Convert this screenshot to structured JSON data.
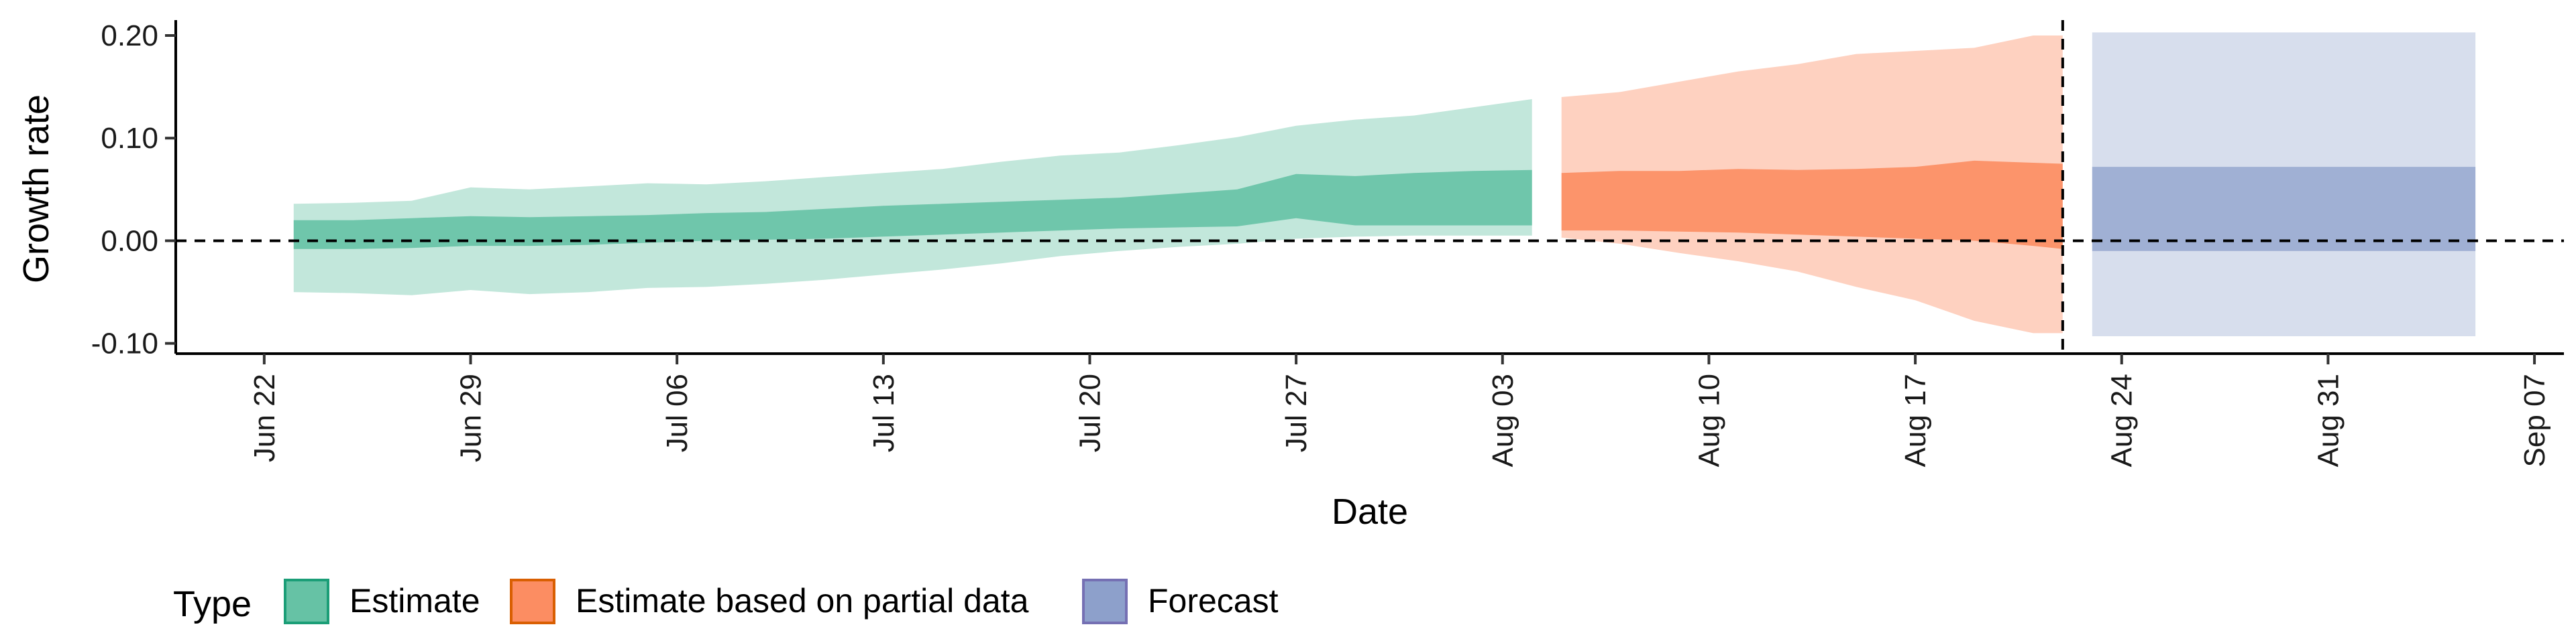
{
  "chart_data": {
    "type": "area",
    "title": "",
    "xlabel": "Date",
    "ylabel": "Growth rate",
    "xlim": [
      "2020-06-19",
      "2020-09-08"
    ],
    "ylim": [
      -0.11,
      0.215
    ],
    "x_ticks": [
      {
        "date": "2020-06-22",
        "label": "Jun 22"
      },
      {
        "date": "2020-06-29",
        "label": "Jun 29"
      },
      {
        "date": "2020-07-06",
        "label": "Jul 06"
      },
      {
        "date": "2020-07-13",
        "label": "Jul 13"
      },
      {
        "date": "2020-07-20",
        "label": "Jul 20"
      },
      {
        "date": "2020-07-27",
        "label": "Jul 27"
      },
      {
        "date": "2020-08-03",
        "label": "Aug 03"
      },
      {
        "date": "2020-08-10",
        "label": "Aug 10"
      },
      {
        "date": "2020-08-17",
        "label": "Aug 17"
      },
      {
        "date": "2020-08-24",
        "label": "Aug 24"
      },
      {
        "date": "2020-08-31",
        "label": "Aug 31"
      },
      {
        "date": "2020-09-07",
        "label": "Sep 07"
      }
    ],
    "y_ticks": [
      {
        "value": -0.1,
        "label": "-0.10"
      },
      {
        "value": 0.0,
        "label": "0.00"
      },
      {
        "value": 0.1,
        "label": "0.10"
      },
      {
        "value": 0.2,
        "label": "0.20"
      }
    ],
    "hline": 0,
    "vline": "2020-08-22",
    "grid": false,
    "legend": {
      "title": "Type",
      "placement": "bottom",
      "entries": [
        {
          "name": "Estimate",
          "fill": "#66c2a5",
          "stroke": "#1b9e77"
        },
        {
          "name": "Estimate based on partial data",
          "fill": "#fc8d62",
          "stroke": "#d95f02"
        },
        {
          "name": "Forecast",
          "fill": "#8da0cb",
          "stroke": "#7570b3"
        }
      ]
    },
    "series": [
      {
        "name": "Estimate",
        "fill": "#66c2a5",
        "outer_opacity": 0.4,
        "inner_opacity": 0.9,
        "points": [
          {
            "x": "2020-06-23",
            "lo90": -0.05,
            "hi90": 0.036,
            "lo50": -0.008,
            "hi50": 0.02
          },
          {
            "x": "2020-06-25",
            "lo90": -0.051,
            "hi90": 0.037,
            "lo50": -0.008,
            "hi50": 0.02
          },
          {
            "x": "2020-06-27",
            "lo90": -0.053,
            "hi90": 0.039,
            "lo50": -0.007,
            "hi50": 0.022
          },
          {
            "x": "2020-06-29",
            "lo90": -0.048,
            "hi90": 0.052,
            "lo50": -0.005,
            "hi50": 0.024
          },
          {
            "x": "2020-07-01",
            "lo90": -0.052,
            "hi90": 0.05,
            "lo50": -0.005,
            "hi50": 0.023
          },
          {
            "x": "2020-07-03",
            "lo90": -0.05,
            "hi90": 0.053,
            "lo50": -0.004,
            "hi50": 0.024
          },
          {
            "x": "2020-07-05",
            "lo90": -0.046,
            "hi90": 0.056,
            "lo50": -0.002,
            "hi50": 0.025
          },
          {
            "x": "2020-07-07",
            "lo90": -0.045,
            "hi90": 0.055,
            "lo50": 0.0,
            "hi50": 0.027
          },
          {
            "x": "2020-07-09",
            "lo90": -0.042,
            "hi90": 0.058,
            "lo50": 0.001,
            "hi50": 0.028
          },
          {
            "x": "2020-07-11",
            "lo90": -0.038,
            "hi90": 0.062,
            "lo50": 0.002,
            "hi50": 0.031
          },
          {
            "x": "2020-07-13",
            "lo90": -0.033,
            "hi90": 0.066,
            "lo50": 0.004,
            "hi50": 0.034
          },
          {
            "x": "2020-07-15",
            "lo90": -0.028,
            "hi90": 0.07,
            "lo50": 0.006,
            "hi50": 0.036
          },
          {
            "x": "2020-07-17",
            "lo90": -0.022,
            "hi90": 0.077,
            "lo50": 0.008,
            "hi50": 0.038
          },
          {
            "x": "2020-07-19",
            "lo90": -0.015,
            "hi90": 0.083,
            "lo50": 0.01,
            "hi50": 0.04
          },
          {
            "x": "2020-07-21",
            "lo90": -0.01,
            "hi90": 0.086,
            "lo50": 0.012,
            "hi50": 0.042
          },
          {
            "x": "2020-07-23",
            "lo90": -0.006,
            "hi90": 0.093,
            "lo50": 0.013,
            "hi50": 0.046
          },
          {
            "x": "2020-07-25",
            "lo90": -0.003,
            "hi90": 0.101,
            "lo50": 0.014,
            "hi50": 0.05
          },
          {
            "x": "2020-07-27",
            "lo90": 0.002,
            "hi90": 0.112,
            "lo50": 0.022,
            "hi50": 0.065
          },
          {
            "x": "2020-07-29",
            "lo90": 0.004,
            "hi90": 0.118,
            "lo50": 0.015,
            "hi50": 0.063
          },
          {
            "x": "2020-07-31",
            "lo90": 0.005,
            "hi90": 0.122,
            "lo50": 0.015,
            "hi50": 0.066
          },
          {
            "x": "2020-08-02",
            "lo90": 0.005,
            "hi90": 0.13,
            "lo50": 0.015,
            "hi50": 0.068
          },
          {
            "x": "2020-08-04",
            "lo90": 0.005,
            "hi90": 0.138,
            "lo50": 0.015,
            "hi50": 0.069
          }
        ]
      },
      {
        "name": "Estimate based on partial data",
        "fill": "#fc8d62",
        "outer_opacity": 0.4,
        "inner_opacity": 0.9,
        "points": [
          {
            "x": "2020-08-05",
            "lo90": 0.003,
            "hi90": 0.14,
            "lo50": 0.01,
            "hi50": 0.066
          },
          {
            "x": "2020-08-07",
            "lo90": -0.003,
            "hi90": 0.145,
            "lo50": 0.01,
            "hi50": 0.068
          },
          {
            "x": "2020-08-09",
            "lo90": -0.012,
            "hi90": 0.155,
            "lo50": 0.009,
            "hi50": 0.068
          },
          {
            "x": "2020-08-11",
            "lo90": -0.02,
            "hi90": 0.165,
            "lo50": 0.008,
            "hi50": 0.07
          },
          {
            "x": "2020-08-13",
            "lo90": -0.03,
            "hi90": 0.172,
            "lo50": 0.006,
            "hi50": 0.069
          },
          {
            "x": "2020-08-15",
            "lo90": -0.045,
            "hi90": 0.182,
            "lo50": 0.004,
            "hi50": 0.07
          },
          {
            "x": "2020-08-17",
            "lo90": -0.058,
            "hi90": 0.185,
            "lo50": 0.002,
            "hi50": 0.072
          },
          {
            "x": "2020-08-19",
            "lo90": -0.078,
            "hi90": 0.188,
            "lo50": 0.0,
            "hi50": 0.078
          },
          {
            "x": "2020-08-21",
            "lo90": -0.09,
            "hi90": 0.2,
            "lo50": -0.005,
            "hi50": 0.076
          },
          {
            "x": "2020-08-22",
            "lo90": -0.09,
            "hi90": 0.2,
            "lo50": -0.008,
            "hi50": 0.075
          }
        ]
      },
      {
        "name": "Forecast",
        "fill": "#8da0cb",
        "outer_opacity": 0.35,
        "inner_opacity": 0.75,
        "points": [
          {
            "x": "2020-08-23",
            "lo90": -0.093,
            "hi90": 0.203,
            "lo50": -0.01,
            "hi50": 0.072
          },
          {
            "x": "2020-09-05",
            "lo90": -0.093,
            "hi90": 0.203,
            "lo50": -0.01,
            "hi50": 0.072
          }
        ]
      }
    ]
  }
}
